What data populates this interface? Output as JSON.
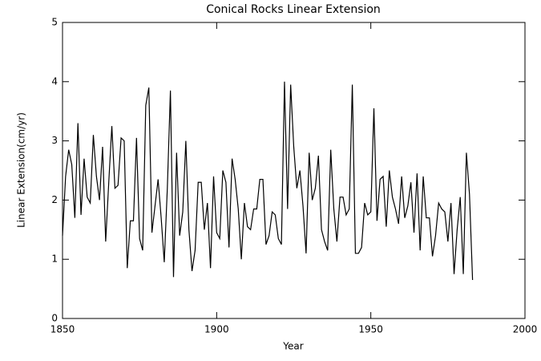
{
  "chart_data": {
    "type": "line",
    "title": "Conical Rocks Linear Extension",
    "x_label": "Year",
    "y_label": "Linear Extension(cm/yr)",
    "x": [
      1850,
      1851,
      1852,
      1853,
      1854,
      1855,
      1856,
      1857,
      1858,
      1859,
      1860,
      1861,
      1862,
      1863,
      1864,
      1865,
      1866,
      1867,
      1868,
      1869,
      1870,
      1871,
      1872,
      1873,
      1874,
      1875,
      1876,
      1877,
      1878,
      1879,
      1880,
      1881,
      1882,
      1883,
      1884,
      1885,
      1886,
      1887,
      1888,
      1889,
      1890,
      1891,
      1892,
      1893,
      1894,
      1895,
      1896,
      1897,
      1898,
      1899,
      1900,
      1901,
      1902,
      1903,
      1904,
      1905,
      1906,
      1907,
      1908,
      1909,
      1910,
      1911,
      1912,
      1913,
      1914,
      1915,
      1916,
      1917,
      1918,
      1919,
      1920,
      1921,
      1922,
      1923,
      1924,
      1925,
      1926,
      1927,
      1928,
      1929,
      1930,
      1931,
      1932,
      1933,
      1934,
      1935,
      1936,
      1937,
      1938,
      1939,
      1940,
      1941,
      1942,
      1943,
      1944,
      1945,
      1946,
      1947,
      1948,
      1949,
      1950,
      1951,
      1952,
      1953,
      1954,
      1955,
      1956,
      1957,
      1958,
      1959,
      1960,
      1961,
      1962,
      1963,
      1964,
      1965,
      1966,
      1967,
      1968,
      1969,
      1970,
      1971,
      1972,
      1973,
      1974,
      1975,
      1976,
      1977,
      1978,
      1979,
      1980,
      1981,
      1982,
      1983
    ],
    "series": [
      {
        "name": "Linear Extension",
        "color": "#000000",
        "values": [
          1.4,
          2.4,
          2.85,
          2.6,
          1.7,
          3.3,
          1.75,
          2.7,
          2.05,
          1.95,
          3.1,
          2.4,
          2.0,
          2.9,
          1.3,
          2.3,
          3.25,
          2.2,
          2.25,
          3.05,
          3.0,
          0.85,
          1.65,
          1.65,
          3.05,
          1.35,
          1.15,
          3.6,
          3.9,
          1.45,
          1.9,
          2.35,
          1.7,
          0.95,
          2.2,
          3.85,
          0.7,
          2.8,
          1.4,
          1.8,
          3.0,
          1.5,
          0.8,
          1.15,
          2.3,
          2.3,
          1.5,
          1.95,
          0.85,
          2.4,
          1.45,
          1.35,
          2.5,
          2.3,
          1.2,
          2.7,
          2.35,
          1.85,
          1.0,
          1.95,
          1.55,
          1.5,
          1.85,
          1.85,
          2.35,
          2.35,
          1.25,
          1.4,
          1.8,
          1.75,
          1.35,
          1.25,
          4.0,
          1.85,
          3.95,
          2.9,
          2.2,
          2.5,
          1.9,
          1.1,
          2.8,
          2.0,
          2.2,
          2.75,
          1.5,
          1.3,
          1.15,
          2.85,
          1.85,
          1.3,
          2.05,
          2.05,
          1.75,
          1.85,
          3.95,
          1.1,
          1.1,
          1.2,
          1.95,
          1.75,
          1.8,
          3.55,
          1.65,
          2.35,
          2.4,
          1.55,
          2.5,
          2.05,
          1.85,
          1.6,
          2.4,
          1.7,
          1.9,
          2.3,
          1.45,
          2.45,
          1.15,
          2.4,
          1.7,
          1.7,
          1.05,
          1.4,
          1.95,
          1.85,
          1.8,
          1.3,
          1.95,
          0.75,
          1.5,
          2.05,
          0.75,
          2.8,
          2.1,
          0.65
        ]
      }
    ],
    "xlim": [
      1850,
      2000
    ],
    "xticks": [
      1850,
      1900,
      1950,
      2000
    ],
    "ylim": [
      0,
      5
    ],
    "yticks": [
      0,
      1,
      2,
      3,
      4,
      5
    ]
  }
}
